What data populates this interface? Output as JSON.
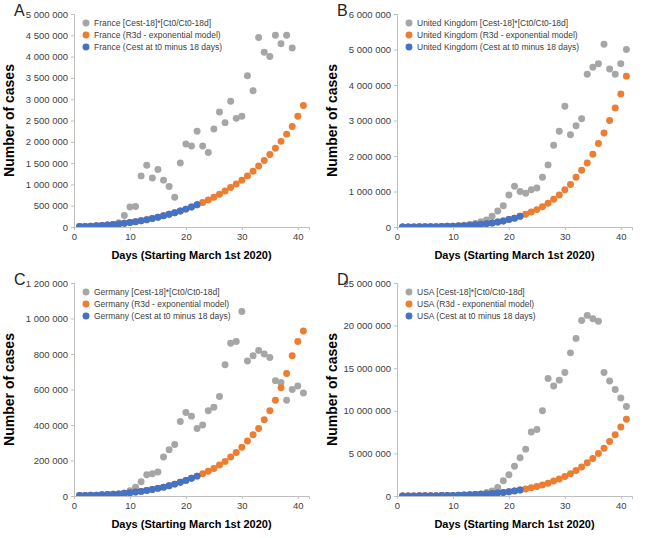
{
  "chart_data": [
    {
      "type": "scatter",
      "title": "A",
      "x_label": "Days (Starting March 1st 2020)",
      "y_label": "Number of cases",
      "x": [
        1,
        2,
        3,
        4,
        5,
        6,
        7,
        8,
        9,
        10,
        11,
        12,
        13,
        14,
        15,
        16,
        17,
        18,
        19,
        20,
        21,
        22,
        23,
        24,
        25,
        26,
        27,
        28,
        29,
        30,
        31,
        32,
        33,
        34,
        35,
        36,
        37,
        38,
        39,
        40,
        41
      ],
      "xlim": [
        0,
        42
      ],
      "xticks": [
        0,
        10,
        20,
        30,
        40
      ],
      "ylim": [
        0,
        5000000
      ],
      "yticks": [
        0,
        {
          "value": 500000,
          "label": "500 000"
        },
        {
          "value": 1000000,
          "label": "1 000 000"
        },
        {
          "value": 1500000,
          "label": "1 500 000"
        },
        {
          "value": 2000000,
          "label": "2 000 000"
        },
        {
          "value": 2500000,
          "label": "2 500 000"
        },
        {
          "value": 3000000,
          "label": "3 000 000"
        },
        {
          "value": 3500000,
          "label": "3 500 000"
        },
        {
          "value": 4000000,
          "label": "4 000 000"
        },
        {
          "value": 4500000,
          "label": "4 500 000"
        },
        {
          "value": 5000000,
          "label": "5 000 000"
        }
      ],
      "grid": false,
      "legend": "top-left",
      "series": [
        {
          "name": "France [Cest-18]*[Ct0/Ct0-18d]",
          "color": "#a6a6a6",
          "marker": "circle",
          "values": [
            5000,
            8000,
            12000,
            18000,
            25000,
            40000,
            60000,
            100000,
            270000,
            470000,
            480000,
            1200000,
            1450000,
            1150000,
            1350000,
            1100000,
            950000,
            700000,
            1500000,
            1950000,
            1900000,
            2250000,
            1900000,
            1750000,
            2300000,
            2700000,
            2450000,
            2950000,
            2550000,
            2600000,
            3550000,
            3200000,
            4450000,
            4100000,
            4000000,
            4500000,
            4300000,
            4500000,
            4200000,
            null,
            null
          ]
        },
        {
          "name": "France (R3d - exponential model)",
          "color": "#ed7d31",
          "marker": "circle",
          "values": [
            10000,
            14000,
            20000,
            27000,
            36000,
            46000,
            58000,
            72000,
            88000,
            105000,
            125000,
            148000,
            172000,
            200000,
            230000,
            262000,
            298000,
            336000,
            378000,
            420000,
            470000,
            520000,
            575000,
            635000,
            700000,
            770000,
            845000,
            925000,
            1010000,
            1100000,
            1200000,
            1310000,
            1430000,
            1560000,
            1700000,
            1850000,
            2010000,
            2180000,
            2360000,
            2600000,
            2850000
          ]
        },
        {
          "name": "France (Cest at t0 minus 18 days)",
          "color": "#4472c4",
          "marker": "circle",
          "values": [
            10000,
            14000,
            20000,
            27000,
            36000,
            46000,
            58000,
            72000,
            88000,
            105000,
            125000,
            148000,
            172000,
            200000,
            230000,
            262000,
            298000,
            336000,
            378000,
            420000,
            470000,
            520000,
            null,
            null,
            null,
            null,
            null,
            null,
            null,
            null,
            null,
            null,
            null,
            null,
            null,
            null,
            null,
            null,
            null,
            null,
            null
          ]
        }
      ]
    },
    {
      "type": "scatter",
      "title": "B",
      "x_label": "Days (Starting March 1st 2020)",
      "y_label": "Number of cases",
      "x": [
        1,
        2,
        3,
        4,
        5,
        6,
        7,
        8,
        9,
        10,
        11,
        12,
        13,
        14,
        15,
        16,
        17,
        18,
        19,
        20,
        21,
        22,
        23,
        24,
        25,
        26,
        27,
        28,
        29,
        30,
        31,
        32,
        33,
        34,
        35,
        36,
        37,
        38,
        39,
        40,
        41
      ],
      "xlim": [
        0,
        42
      ],
      "xticks": [
        0,
        10,
        20,
        30,
        40
      ],
      "ylim": [
        0,
        6000000
      ],
      "yticks": [
        0,
        {
          "value": 1000000,
          "label": "1 000 000"
        },
        {
          "value": 2000000,
          "label": "2 000 000"
        },
        {
          "value": 3000000,
          "label": "3 000 000"
        },
        {
          "value": 4000000,
          "label": "4 000 000"
        },
        {
          "value": 5000000,
          "label": "5 000 000"
        },
        {
          "value": 6000000,
          "label": "6 000 000"
        }
      ],
      "grid": false,
      "legend": "top-left",
      "series": [
        {
          "name": "United Kingdom [Cest-18]*[Ct0/Ct0-18d]",
          "color": "#a6a6a6",
          "marker": "circle",
          "values": [
            1000,
            1500,
            2000,
            3000,
            4000,
            6000,
            8000,
            12000,
            18000,
            25000,
            35000,
            50000,
            70000,
            100000,
            150000,
            200000,
            300000,
            450000,
            600000,
            900000,
            1150000,
            1000000,
            950000,
            1050000,
            1100000,
            1400000,
            1750000,
            2300000,
            2700000,
            3400000,
            2600000,
            2850000,
            3050000,
            4300000,
            4500000,
            4600000,
            5150000,
            4450000,
            4300000,
            4600000,
            5000000
          ]
        },
        {
          "name": "United Kingdom (R3d - exponential model)",
          "color": "#ed7d31",
          "marker": "circle",
          "values": [
            2200,
            2900,
            3800,
            5000,
            6500,
            8500,
            11000,
            15000,
            19000,
            24000,
            31000,
            39000,
            49000,
            61000,
            76000,
            94000,
            115000,
            140000,
            170000,
            210000,
            250000,
            300000,
            360000,
            420000,
            490000,
            570000,
            670000,
            780000,
            900000,
            1050000,
            1200000,
            1400000,
            1600000,
            1800000,
            2050000,
            2350000,
            2650000,
            3000000,
            3350000,
            3750000,
            4250000
          ]
        },
        {
          "name": "United Kingdom (Cest at t0 minus 18 days)",
          "color": "#4472c4",
          "marker": "circle",
          "values": [
            2200,
            2900,
            3800,
            5000,
            6500,
            8500,
            11000,
            15000,
            19000,
            24000,
            31000,
            39000,
            49000,
            61000,
            76000,
            94000,
            115000,
            140000,
            170000,
            210000,
            250000,
            300000,
            null,
            null,
            null,
            null,
            null,
            null,
            null,
            null,
            null,
            null,
            null,
            null,
            null,
            null,
            null,
            null,
            null,
            null,
            null
          ]
        }
      ]
    },
    {
      "type": "scatter",
      "title": "C",
      "x_label": "Days (Starting March 1st 2020)",
      "y_label": "Number of cases",
      "x": [
        1,
        2,
        3,
        4,
        5,
        6,
        7,
        8,
        9,
        10,
        11,
        12,
        13,
        14,
        15,
        16,
        17,
        18,
        19,
        20,
        21,
        22,
        23,
        24,
        25,
        26,
        27,
        28,
        29,
        30,
        31,
        32,
        33,
        34,
        35,
        36,
        37,
        38,
        39,
        40,
        41
      ],
      "xlim": [
        0,
        42
      ],
      "xticks": [
        0,
        10,
        20,
        30,
        40
      ],
      "ylim": [
        0,
        1200000
      ],
      "yticks": [
        0,
        {
          "value": 200000,
          "label": "200 000"
        },
        {
          "value": 400000,
          "label": "400 000"
        },
        {
          "value": 600000,
          "label": "600 000"
        },
        {
          "value": 800000,
          "label": "800 000"
        },
        {
          "value": 1000000,
          "label": "1 000 000"
        },
        {
          "value": 1200000,
          "label": "1 200 000"
        }
      ],
      "grid": false,
      "legend": "top-left",
      "series": [
        {
          "name": "Germany [Cest-18]*[Ct0/Ct0-18d]",
          "color": "#a6a6a6",
          "marker": "circle",
          "values": [
            500,
            700,
            1000,
            1500,
            2000,
            3000,
            5000,
            8000,
            15000,
            30000,
            50000,
            80000,
            120000,
            125000,
            135000,
            220000,
            260000,
            290000,
            420000,
            470000,
            450000,
            380000,
            400000,
            480000,
            500000,
            560000,
            740000,
            860000,
            870000,
            1040000,
            760000,
            790000,
            820000,
            800000,
            780000,
            650000,
            640000,
            540000,
            600000,
            620000,
            580000
          ]
        },
        {
          "name": "Germany (R3d - exponential model)",
          "color": "#ed7d31",
          "marker": "circle",
          "values": [
            2400,
            3000,
            4000,
            5000,
            6500,
            8000,
            10000,
            12000,
            15000,
            18000,
            22000,
            26000,
            31000,
            37000,
            43000,
            50000,
            58000,
            67000,
            77000,
            88000,
            100000,
            112000,
            125000,
            140000,
            155000,
            175000,
            195000,
            220000,
            245000,
            275000,
            310000,
            345000,
            380000,
            430000,
            480000,
            540000,
            610000,
            690000,
            790000,
            870000,
            930000
          ]
        },
        {
          "name": "Germany (Cest at t0 minus 18 days)",
          "color": "#4472c4",
          "marker": "circle",
          "values": [
            2400,
            3000,
            4000,
            5000,
            6500,
            8000,
            10000,
            12000,
            15000,
            18000,
            22000,
            26000,
            31000,
            37000,
            43000,
            50000,
            58000,
            67000,
            77000,
            88000,
            100000,
            112000,
            null,
            null,
            null,
            null,
            null,
            null,
            null,
            null,
            null,
            null,
            null,
            null,
            null,
            null,
            null,
            null,
            null,
            null,
            null
          ]
        }
      ]
    },
    {
      "type": "scatter",
      "title": "D",
      "x_label": "Days (Starting March 1st 2020)",
      "y_label": "Number of cases",
      "x": [
        1,
        2,
        3,
        4,
        5,
        6,
        7,
        8,
        9,
        10,
        11,
        12,
        13,
        14,
        15,
        16,
        17,
        18,
        19,
        20,
        21,
        22,
        23,
        24,
        25,
        26,
        27,
        28,
        29,
        30,
        31,
        32,
        33,
        34,
        35,
        36,
        37,
        38,
        39,
        40,
        41
      ],
      "xlim": [
        0,
        42
      ],
      "xticks": [
        0,
        10,
        20,
        30,
        40
      ],
      "ylim": [
        0,
        25000000
      ],
      "yticks": [
        0,
        {
          "value": 5000000,
          "label": "5 000 000"
        },
        {
          "value": 10000000,
          "label": "10 000 000"
        },
        {
          "value": 15000000,
          "label": "15 000 000"
        },
        {
          "value": 20000000,
          "label": "20 000 000"
        },
        {
          "value": 25000000,
          "label": "25 000 000"
        }
      ],
      "grid": false,
      "legend": "top-left",
      "series": [
        {
          "name": "USA [Cest-18]*[Ct0/Ct0-18d]",
          "color": "#a6a6a6",
          "marker": "circle",
          "values": [
            2000,
            3000,
            4000,
            6000,
            8000,
            12000,
            16000,
            22000,
            30000,
            45000,
            60000,
            80000,
            110000,
            160000,
            250000,
            400000,
            600000,
            1000000,
            1800000,
            2500000,
            3500000,
            4500000,
            5500000,
            7500000,
            7800000,
            10000000,
            13800000,
            12900000,
            13600000,
            14500000,
            16800000,
            18500000,
            20600000,
            21200000,
            20800000,
            20500000,
            14500000,
            13500000,
            12500000,
            11500000,
            10500000
          ]
        },
        {
          "name": "USA (R3d - exponential model)",
          "color": "#ed7d31",
          "marker": "circle",
          "values": [
            9500,
            12000,
            15000,
            19000,
            24000,
            30000,
            38000,
            47000,
            59000,
            73000,
            90000,
            110000,
            135000,
            165000,
            200000,
            240000,
            290000,
            350000,
            420000,
            500000,
            600000,
            700000,
            820000,
            960000,
            1120000,
            1300000,
            1500000,
            1750000,
            2000000,
            2300000,
            2600000,
            3000000,
            3400000,
            3900000,
            4400000,
            5000000,
            5600000,
            6400000,
            7200000,
            8100000,
            9000000
          ]
        },
        {
          "name": "USA (Cest at t0 minus 18 days)",
          "color": "#4472c4",
          "marker": "circle",
          "values": [
            9500,
            12000,
            15000,
            19000,
            24000,
            30000,
            38000,
            47000,
            59000,
            73000,
            90000,
            110000,
            135000,
            165000,
            200000,
            240000,
            290000,
            350000,
            420000,
            500000,
            600000,
            700000,
            null,
            null,
            null,
            null,
            null,
            null,
            null,
            null,
            null,
            null,
            null,
            null,
            null,
            null,
            null,
            null,
            null,
            null,
            null
          ]
        }
      ]
    }
  ]
}
